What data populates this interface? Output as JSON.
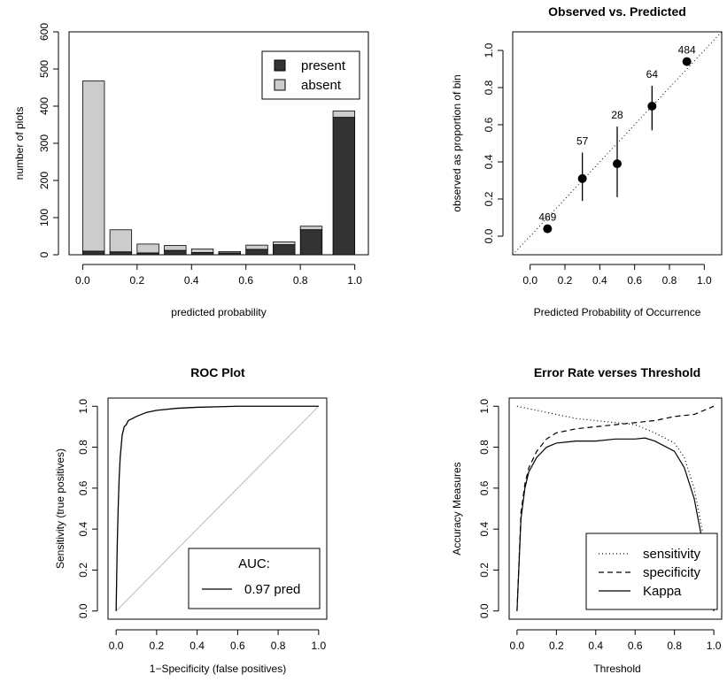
{
  "chart_data": [
    {
      "id": "hist",
      "type": "bar",
      "title": "",
      "xlabel": "predicted probability",
      "ylabel": "number of plots",
      "xlim": [
        -0.05,
        1.05
      ],
      "ylim": [
        0,
        600
      ],
      "xticks": [
        "0.0",
        "0.2",
        "0.4",
        "0.6",
        "0.8",
        "1.0"
      ],
      "yticks": [
        "0",
        "100",
        "200",
        "300",
        "400",
        "500",
        "600"
      ],
      "bins": [
        [
          0.0,
          0.08
        ],
        [
          0.1,
          0.18
        ],
        [
          0.2,
          0.28
        ],
        [
          0.3,
          0.38
        ],
        [
          0.4,
          0.48
        ],
        [
          0.5,
          0.58
        ],
        [
          0.6,
          0.68
        ],
        [
          0.7,
          0.78
        ],
        [
          0.8,
          0.88
        ],
        [
          0.92,
          1.0
        ]
      ],
      "series": [
        {
          "name": "present",
          "color": "#333333",
          "values": [
            10,
            8,
            5,
            12,
            6,
            5,
            15,
            28,
            70,
            385
          ]
        },
        {
          "name": "absent",
          "color": "#cccccc",
          "values": [
            477,
            62,
            25,
            14,
            10,
            4,
            12,
            8,
            10,
            18
          ]
        }
      ],
      "legend": "top-right"
    },
    {
      "id": "calib",
      "type": "scatter",
      "title": "Observed vs. Predicted",
      "xlabel": "Predicted Probability of Occurrence",
      "ylabel": "observed as proportion of bin",
      "xlim": [
        -0.1,
        1.1
      ],
      "ylim": [
        -0.1,
        1.1
      ],
      "xticks": [
        "0.0",
        "0.2",
        "0.4",
        "0.6",
        "0.8",
        "1.0"
      ],
      "yticks": [
        "0.0",
        "0.2",
        "0.4",
        "0.6",
        "0.8",
        "1.0"
      ],
      "points": [
        {
          "x": 0.1,
          "y": 0.04,
          "lo": 0.04,
          "hi": 0.04,
          "n": "469"
        },
        {
          "x": 0.3,
          "y": 0.31,
          "lo": 0.19,
          "hi": 0.45,
          "n": "57"
        },
        {
          "x": 0.5,
          "y": 0.39,
          "lo": 0.21,
          "hi": 0.59,
          "n": "28"
        },
        {
          "x": 0.7,
          "y": 0.7,
          "lo": 0.57,
          "hi": 0.81,
          "n": "64"
        },
        {
          "x": 0.9,
          "y": 0.94,
          "lo": 0.94,
          "hi": 0.94,
          "n": "484"
        }
      ]
    },
    {
      "id": "roc",
      "type": "line",
      "title": "ROC Plot",
      "xlabel": "1−Specificity (false positives)",
      "ylabel": "Sensitivity (true positives)",
      "xlim": [
        -0.04,
        1.04
      ],
      "ylim": [
        -0.04,
        1.04
      ],
      "xticks": [
        "0.0",
        "0.2",
        "0.4",
        "0.6",
        "0.8",
        "1.0"
      ],
      "yticks": [
        "0.0",
        "0.2",
        "0.4",
        "0.6",
        "0.8",
        "1.0"
      ],
      "series": [
        {
          "name": "pred",
          "color": "#000000",
          "x": [
            0,
            0.005,
            0.01,
            0.015,
            0.02,
            0.03,
            0.04,
            0.05,
            0.06,
            0.08,
            0.1,
            0.15,
            0.2,
            0.3,
            0.4,
            0.6,
            0.8,
            1.0
          ],
          "y": [
            0,
            0.3,
            0.5,
            0.65,
            0.75,
            0.86,
            0.9,
            0.91,
            0.93,
            0.94,
            0.95,
            0.97,
            0.98,
            0.99,
            0.995,
            1.0,
            1.0,
            1.0
          ]
        }
      ],
      "legend": {
        "title": "AUC:",
        "entry": "0.97 pred",
        "placement": "bottom-right"
      }
    },
    {
      "id": "err",
      "type": "line",
      "title": "Error Rate verses Threshold",
      "xlabel": "Threshold",
      "ylabel": "Accuracy Measures",
      "xlim": [
        -0.04,
        1.04
      ],
      "ylim": [
        -0.04,
        1.04
      ],
      "xticks": [
        "0.0",
        "0.2",
        "0.4",
        "0.6",
        "0.8",
        "1.0"
      ],
      "yticks": [
        "0.0",
        "0.2",
        "0.4",
        "0.6",
        "0.8",
        "1.0"
      ],
      "series": [
        {
          "name": "sensitivity",
          "dash": "1,3",
          "x": [
            0,
            0.1,
            0.2,
            0.3,
            0.4,
            0.5,
            0.6,
            0.7,
            0.8,
            0.85,
            0.9,
            0.95,
            1.0
          ],
          "y": [
            1.0,
            0.98,
            0.96,
            0.94,
            0.93,
            0.92,
            0.91,
            0.87,
            0.82,
            0.75,
            0.6,
            0.35,
            0.0
          ]
        },
        {
          "name": "specificity",
          "dash": "6,4",
          "x": [
            0,
            0.02,
            0.04,
            0.06,
            0.1,
            0.15,
            0.2,
            0.3,
            0.4,
            0.5,
            0.6,
            0.7,
            0.8,
            0.9,
            1.0
          ],
          "y": [
            0.0,
            0.48,
            0.62,
            0.7,
            0.78,
            0.84,
            0.87,
            0.89,
            0.9,
            0.91,
            0.92,
            0.93,
            0.95,
            0.96,
            1.0
          ]
        },
        {
          "name": "Kappa",
          "dash": "",
          "x": [
            0,
            0.02,
            0.04,
            0.06,
            0.1,
            0.15,
            0.2,
            0.3,
            0.4,
            0.5,
            0.6,
            0.65,
            0.7,
            0.8,
            0.85,
            0.9,
            0.95,
            1.0
          ],
          "y": [
            0.0,
            0.45,
            0.6,
            0.68,
            0.75,
            0.8,
            0.82,
            0.83,
            0.83,
            0.84,
            0.84,
            0.845,
            0.83,
            0.78,
            0.7,
            0.55,
            0.3,
            0.0
          ]
        }
      ],
      "legend": "bottom-right"
    }
  ]
}
